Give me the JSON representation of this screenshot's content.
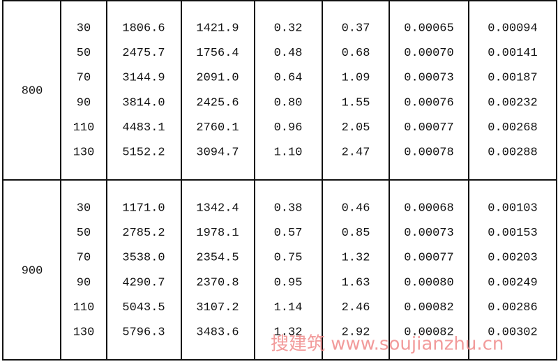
{
  "table": {
    "groups": [
      {
        "label": "800",
        "rows": [
          [
            "30",
            "1806.6",
            "1421.9",
            "0.32",
            "0.37",
            "0.00065",
            "0.00094"
          ],
          [
            "50",
            "2475.7",
            "1756.4",
            "0.48",
            "0.68",
            "0.00070",
            "0.00141"
          ],
          [
            "70",
            "3144.9",
            "2091.0",
            "0.64",
            "1.09",
            "0.00073",
            "0.00187"
          ],
          [
            "90",
            "3814.0",
            "2425.6",
            "0.80",
            "1.55",
            "0.00076",
            "0.00232"
          ],
          [
            "110",
            "4483.1",
            "2760.1",
            "0.96",
            "2.05",
            "0.00077",
            "0.00268"
          ],
          [
            "130",
            "5152.2",
            "3094.7",
            "1.10",
            "2.47",
            "0.00078",
            "0.00288"
          ]
        ]
      },
      {
        "label": "900",
        "rows": [
          [
            "30",
            "1171.0",
            "1342.4",
            "0.38",
            "0.46",
            "0.00068",
            "0.00103"
          ],
          [
            "50",
            "2785.2",
            "1978.1",
            "0.57",
            "0.85",
            "0.00073",
            "0.00153"
          ],
          [
            "70",
            "3538.0",
            "2354.5",
            "0.75",
            "1.32",
            "0.00077",
            "0.00203"
          ],
          [
            "90",
            "4290.7",
            "2370.8",
            "0.95",
            "1.63",
            "0.00080",
            "0.00249"
          ],
          [
            "110",
            "5043.5",
            "3107.2",
            "1.14",
            "2.46",
            "0.00082",
            "0.00286"
          ],
          [
            "130",
            "5796.3",
            "3483.6",
            "1.32",
            "2.92",
            "0.00082",
            "0.00302"
          ]
        ]
      }
    ]
  },
  "watermark": "搜建筑 www.soujianzhu.cn"
}
